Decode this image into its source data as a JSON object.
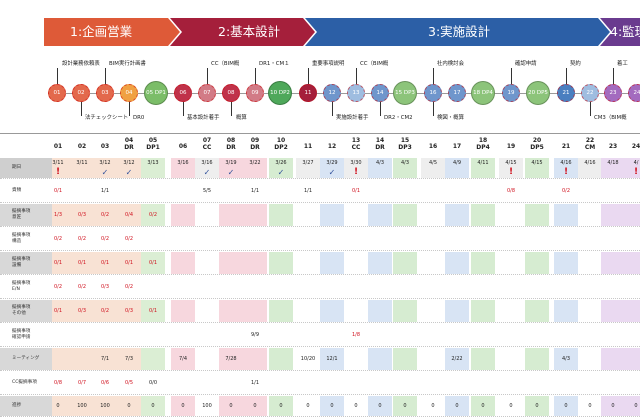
{
  "phases": [
    {
      "label": "1:企画営業",
      "color": "#de5a38"
    },
    {
      "label": "2:基本設計",
      "color": "#a51f3b"
    },
    {
      "label": "3:実施設計",
      "color": "#2c5fa6"
    },
    {
      "label": "4:監理",
      "color": "#6a3b8f"
    }
  ],
  "nodes": [
    {
      "label": "01",
      "color": "#e3694c"
    },
    {
      "label": "02",
      "color": "#e3694c"
    },
    {
      "label": "03",
      "color": "#e3694c"
    },
    {
      "label": "04",
      "color": "#f0a143"
    },
    {
      "label": "05 DP1",
      "color": "#7bbd68"
    },
    {
      "label": "06",
      "color": "#c0324a"
    },
    {
      "label": "07",
      "color": "#d27b86"
    },
    {
      "label": "08",
      "color": "#c0324a"
    },
    {
      "label": "09",
      "color": "#d27b86"
    },
    {
      "label": "10 DP2",
      "color": "#4ea85a"
    },
    {
      "label": "11",
      "color": "#a51f3b"
    },
    {
      "label": "12",
      "color": "#6f96cc"
    },
    {
      "label": "13",
      "color": "#9fbde0"
    },
    {
      "label": "14",
      "color": "#6f96cc"
    },
    {
      "label": "15 DP3",
      "color": "#8cc47a"
    },
    {
      "label": "16",
      "color": "#6f96cc"
    },
    {
      "label": "17",
      "color": "#6f96cc"
    },
    {
      "label": "18 DP4",
      "color": "#8cc47a"
    },
    {
      "label": "19",
      "color": "#6f96cc"
    },
    {
      "label": "20 DP5",
      "color": "#8cc47a"
    },
    {
      "label": "21",
      "color": "#4a7fc0"
    },
    {
      "label": "22",
      "color": "#9fbde0"
    },
    {
      "label": "23",
      "color": "#a36bbf"
    },
    {
      "label": "24",
      "color": "#a36bbf"
    }
  ],
  "callouts": [
    "設計業務依頼表",
    "BIM実行計画書",
    "法チェックシート",
    "DR0",
    "CC（BIM概",
    "DR1・CM１",
    "基本設計着手",
    "概算",
    "重要事項説明",
    "CC（BIM概",
    "実施設計着手",
    "DR2・CM2",
    "社内検討会",
    "確認申請",
    "検図・概算",
    "契約",
    "着工",
    "CM3（BIM概"
  ],
  "columns": [
    {
      "label": "01",
      "date": "3/11"
    },
    {
      "label": "02",
      "date": "3/11"
    },
    {
      "label": "03",
      "date": "3/12"
    },
    {
      "label": "04 DR",
      "date": "3/12"
    },
    {
      "label": "05 DP1",
      "date": "3/13"
    },
    {
      "label": "06",
      "date": "3/16"
    },
    {
      "label": "07 CC",
      "date": "3/16"
    },
    {
      "label": "08 DR",
      "date": "3/19"
    },
    {
      "label": "09 DR",
      "date": "3/22"
    },
    {
      "label": "10 DP2",
      "date": "3/26"
    },
    {
      "label": "11",
      "date": "3/27"
    },
    {
      "label": "12",
      "date": "3/29"
    },
    {
      "label": "13 CC",
      "date": "3/30"
    },
    {
      "label": "14 DR",
      "date": "4/3"
    },
    {
      "label": "15 DP3",
      "date": "4/3"
    },
    {
      "label": "16",
      "date": "4/5"
    },
    {
      "label": "17",
      "date": "4/9"
    },
    {
      "label": "18 DP4",
      "date": "4/11"
    },
    {
      "label": "19",
      "date": "4/15"
    },
    {
      "label": "20 DP5",
      "date": "4/15"
    },
    {
      "label": "21",
      "date": "4/16"
    },
    {
      "label": "22 CM",
      "date": "4/16"
    },
    {
      "label": "23",
      "date": "4/18"
    },
    {
      "label": "24",
      "date": "4/"
    }
  ],
  "rows": [
    {
      "label": "期日",
      "values": []
    },
    {
      "label": "資類",
      "values": [
        "0/1",
        "",
        "1/1",
        "",
        "",
        "",
        "5/5",
        "",
        "1/1",
        "",
        "1/1",
        "",
        "0/1",
        "",
        "",
        "",
        "",
        "",
        "0/8",
        "",
        "0/2",
        "",
        "",
        ""
      ]
    },
    {
      "label": "擬摘事項 意匠",
      "values": [
        "1/3",
        "0/3",
        "0/2",
        "0/4",
        "0/2",
        "",
        "",
        "",
        "",
        "",
        "",
        "",
        "",
        "",
        "",
        "",
        "",
        "",
        "",
        "",
        "",
        "",
        "",
        ""
      ]
    },
    {
      "label": "擬摘事項 構造",
      "values": [
        "0/2",
        "0/2",
        "0/2",
        "0/2",
        "",
        "",
        "",
        "",
        "",
        "",
        "",
        "",
        "",
        "",
        "",
        "",
        "",
        "",
        "",
        "",
        "",
        "",
        "",
        ""
      ]
    },
    {
      "label": "擬摘事項 設備",
      "values": [
        "0/1",
        "0/1",
        "0/1",
        "0/1",
        "0/1",
        "",
        "",
        "",
        "",
        "",
        "",
        "",
        "",
        "",
        "",
        "",
        "",
        "",
        "",
        "",
        "",
        "",
        "",
        ""
      ]
    },
    {
      "label": "擬摘事項 E/N",
      "values": [
        "0/2",
        "0/2",
        "0/3",
        "0/2",
        "",
        "",
        "",
        "",
        "",
        "",
        "",
        "",
        "",
        "",
        "",
        "",
        "",
        "",
        "",
        "",
        "",
        "",
        "",
        ""
      ]
    },
    {
      "label": "擬摘事項 その他",
      "values": [
        "0/1",
        "0/3",
        "0/2",
        "0/3",
        "0/1",
        "",
        "",
        "",
        "",
        "",
        "",
        "",
        "",
        "",
        "",
        "",
        "",
        "",
        "",
        "",
        "",
        "",
        "",
        ""
      ]
    },
    {
      "label": "擬摘事項 確認申請",
      "values": [
        "",
        "",
        "",
        "",
        "",
        "",
        "",
        "",
        "9/9",
        "",
        "",
        "",
        "1/8",
        "",
        "",
        "",
        "",
        "",
        "",
        "",
        "",
        "",
        "",
        ""
      ]
    },
    {
      "label": "ミーティング",
      "values": [
        "",
        "",
        "7/1",
        "7/3",
        "",
        "7/4",
        "",
        "7/28",
        "",
        "",
        "10/20",
        "12/1",
        "",
        "",
        "",
        "",
        "2/22",
        "",
        "",
        "",
        "4/3",
        "",
        "",
        ""
      ]
    },
    {
      "label": "CC擬摘事項",
      "values": [
        "0/8",
        "0/7",
        "0/6",
        "0/5",
        "0/0",
        "",
        "",
        "",
        "1/1",
        "",
        "",
        "",
        "",
        "",
        "",
        "",
        "",
        "",
        "",
        "",
        "",
        "",
        "",
        ""
      ]
    },
    {
      "label": "進捗",
      "values": [
        "0",
        "100",
        "100",
        "0",
        "0",
        "0",
        "100",
        "0",
        "0",
        "0",
        "0",
        "0",
        "0",
        "0",
        "0",
        "0",
        "0",
        "0",
        "0",
        "0",
        "0",
        "0",
        "0",
        "0"
      ]
    }
  ]
}
